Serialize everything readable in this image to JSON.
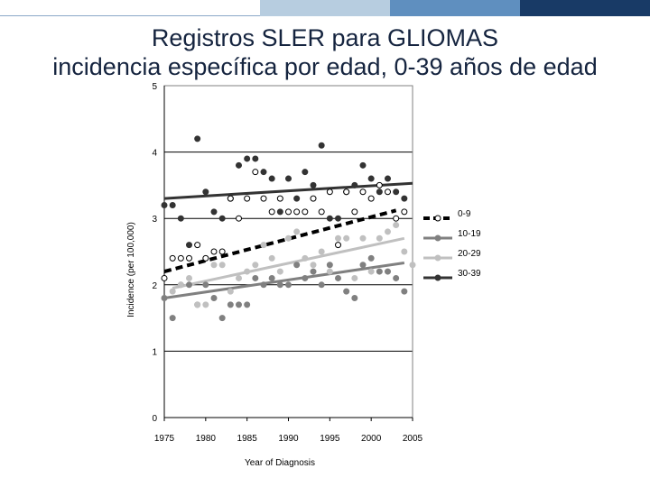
{
  "header": {
    "bar_colors": [
      "#ffffff",
      "#b7cde0",
      "#5f8fbf",
      "#183a66"
    ]
  },
  "slide": {
    "title_line1": "Registros SLER para GLIOMAS",
    "title_line2": "incidencia específica por edad, 0-39 años de edad"
  },
  "chart_data": {
    "type": "scatter",
    "ylabel": "Incidence (per 100,000)",
    "xlabel": "Year of Diagnosis",
    "xlim": [
      1975,
      2005
    ],
    "ylim": [
      0,
      5
    ],
    "x_ticks": [
      "1975",
      "1980",
      "1985",
      "1990",
      "1995",
      "2000",
      "2005"
    ],
    "y_ticks": [
      "0",
      "1",
      "2",
      "3",
      "4",
      "5"
    ],
    "gridlines": "horizontal",
    "legend_position": "right",
    "series": [
      {
        "name": "0-9",
        "color": "#000000",
        "marker": "open-circle",
        "trend_style": "dashed",
        "trend": [
          [
            1975,
            2.2
          ],
          [
            2003,
            3.12
          ]
        ],
        "points": [
          [
            1975,
            2.1
          ],
          [
            1976,
            2.4
          ],
          [
            1977,
            2.4
          ],
          [
            1978,
            2.4
          ],
          [
            1979,
            2.6
          ],
          [
            1980,
            2.4
          ],
          [
            1981,
            2.5
          ],
          [
            1982,
            2.5
          ],
          [
            1983,
            3.3
          ],
          [
            1984,
            3.0
          ],
          [
            1985,
            3.3
          ],
          [
            1986,
            3.7
          ],
          [
            1987,
            3.3
          ],
          [
            1988,
            3.1
          ],
          [
            1989,
            3.3
          ],
          [
            1990,
            3.1
          ],
          [
            1991,
            3.1
          ],
          [
            1992,
            3.1
          ],
          [
            1993,
            3.3
          ],
          [
            1994,
            3.1
          ],
          [
            1995,
            3.4
          ],
          [
            1996,
            2.6
          ],
          [
            1997,
            3.4
          ],
          [
            1998,
            3.1
          ],
          [
            1999,
            3.4
          ],
          [
            2000,
            3.3
          ],
          [
            2001,
            3.5
          ],
          [
            2002,
            3.4
          ],
          [
            2003,
            3.0
          ],
          [
            2004,
            3.1
          ]
        ]
      },
      {
        "name": "10-19",
        "color": "#808080",
        "marker": "filled-circle",
        "trend_style": "solid",
        "trend": [
          [
            1975,
            1.8
          ],
          [
            2004,
            2.33
          ]
        ],
        "points": [
          [
            1975,
            1.8
          ],
          [
            1976,
            1.5
          ],
          [
            1977,
            2.0
          ],
          [
            1978,
            2.0
          ],
          [
            1979,
            1.7
          ],
          [
            1980,
            2.0
          ],
          [
            1981,
            1.8
          ],
          [
            1982,
            1.5
          ],
          [
            1983,
            1.7
          ],
          [
            1984,
            1.7
          ],
          [
            1985,
            1.7
          ],
          [
            1986,
            2.1
          ],
          [
            1987,
            2.0
          ],
          [
            1988,
            2.1
          ],
          [
            1989,
            2.0
          ],
          [
            1990,
            2.0
          ],
          [
            1991,
            2.3
          ],
          [
            1992,
            2.1
          ],
          [
            1993,
            2.2
          ],
          [
            1994,
            2.0
          ],
          [
            1995,
            2.3
          ],
          [
            1996,
            2.1
          ],
          [
            1997,
            1.9
          ],
          [
            1998,
            1.8
          ],
          [
            1999,
            2.3
          ],
          [
            2000,
            2.4
          ],
          [
            2001,
            2.2
          ],
          [
            2002,
            2.2
          ],
          [
            2003,
            2.1
          ],
          [
            2004,
            1.9
          ]
        ]
      },
      {
        "name": "20-29",
        "color": "#c0c0c0",
        "marker": "filled-circle",
        "trend_style": "solid",
        "trend": [
          [
            1976,
            1.95
          ],
          [
            2004,
            2.7
          ]
        ],
        "points": [
          [
            1976,
            1.9
          ],
          [
            1977,
            2.0
          ],
          [
            1978,
            2.1
          ],
          [
            1979,
            1.7
          ],
          [
            1980,
            1.7
          ],
          [
            1981,
            2.3
          ],
          [
            1982,
            2.3
          ],
          [
            1983,
            1.9
          ],
          [
            1984,
            2.1
          ],
          [
            1985,
            2.2
          ],
          [
            1986,
            2.3
          ],
          [
            1987,
            2.6
          ],
          [
            1988,
            2.4
          ],
          [
            1989,
            2.2
          ],
          [
            1990,
            2.7
          ],
          [
            1991,
            2.8
          ],
          [
            1992,
            2.4
          ],
          [
            1993,
            2.3
          ],
          [
            1994,
            2.5
          ],
          [
            1995,
            2.2
          ],
          [
            1996,
            2.7
          ],
          [
            1997,
            2.7
          ],
          [
            1998,
            2.1
          ],
          [
            1999,
            2.7
          ],
          [
            2000,
            2.2
          ],
          [
            2001,
            2.7
          ],
          [
            2002,
            2.8
          ],
          [
            2003,
            2.9
          ],
          [
            2004,
            2.5
          ],
          [
            2005,
            2.3
          ]
        ]
      },
      {
        "name": "30-39",
        "color": "#333333",
        "marker": "filled-circle",
        "trend_style": "solid",
        "trend": [
          [
            1975,
            3.3
          ],
          [
            2005,
            3.53
          ]
        ],
        "points": [
          [
            1975,
            3.2
          ],
          [
            1976,
            3.2
          ],
          [
            1977,
            3.0
          ],
          [
            1978,
            2.6
          ],
          [
            1979,
            4.2
          ],
          [
            1980,
            3.4
          ],
          [
            1981,
            3.1
          ],
          [
            1982,
            3.0
          ],
          [
            1983,
            3.3
          ],
          [
            1984,
            3.8
          ],
          [
            1985,
            3.9
          ],
          [
            1986,
            3.9
          ],
          [
            1987,
            3.7
          ],
          [
            1988,
            3.6
          ],
          [
            1989,
            3.1
          ],
          [
            1990,
            3.6
          ],
          [
            1991,
            3.3
          ],
          [
            1992,
            3.7
          ],
          [
            1993,
            3.5
          ],
          [
            1994,
            4.1
          ],
          [
            1995,
            3.0
          ],
          [
            1996,
            3.0
          ],
          [
            1997,
            3.4
          ],
          [
            1998,
            3.5
          ],
          [
            1999,
            3.8
          ],
          [
            2000,
            3.6
          ],
          [
            2001,
            3.4
          ],
          [
            2002,
            3.6
          ],
          [
            2003,
            3.4
          ],
          [
            2004,
            3.3
          ]
        ]
      }
    ]
  }
}
